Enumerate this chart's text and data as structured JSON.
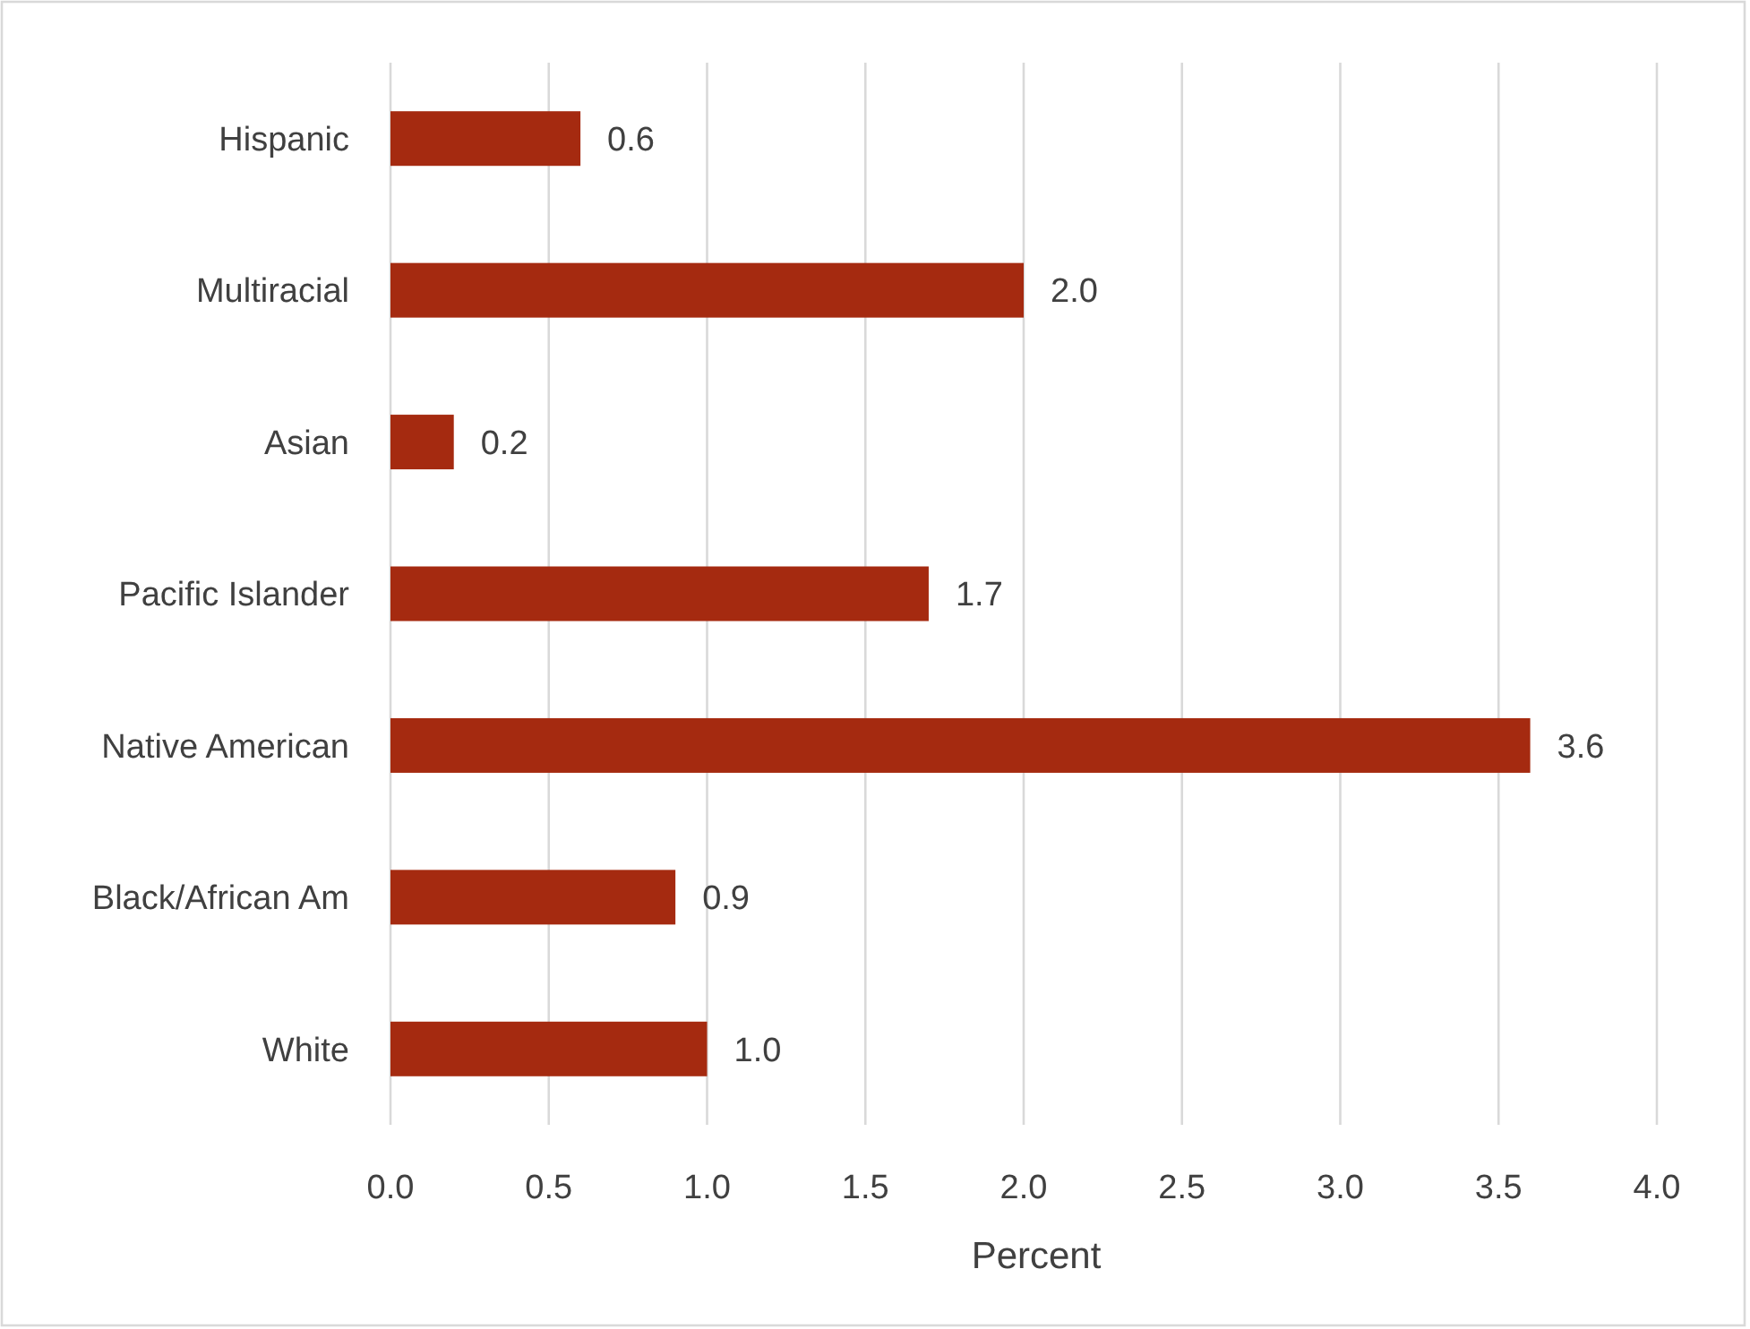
{
  "chart_data": {
    "type": "bar",
    "orientation": "horizontal",
    "xlabel": "Percent",
    "categories": [
      "Hispanic",
      "Multiracial",
      "Asian",
      "Pacific Islander",
      "Native American",
      "Black/African Am",
      "White"
    ],
    "values": [
      0.6,
      2.0,
      0.2,
      1.7,
      3.6,
      0.9,
      1.0
    ],
    "color": "#a52a10",
    "value_labels": [
      "0.6",
      "2.0",
      "0.2",
      "1.7",
      "3.6",
      "0.9",
      "1.0"
    ],
    "xlim": [
      0,
      4
    ],
    "xticks": [
      {
        "value": 0,
        "label": "0.0"
      },
      {
        "value": 0.5,
        "label": "0.5"
      },
      {
        "value": 1,
        "label": "1.0"
      },
      {
        "value": 1.5,
        "label": "1.5"
      },
      {
        "value": 2,
        "label": "2.0"
      },
      {
        "value": 2.5,
        "label": "2.5"
      },
      {
        "value": 3,
        "label": "3.0"
      },
      {
        "value": 3.5,
        "label": "3.5"
      },
      {
        "value": 4,
        "label": "4.0"
      }
    ],
    "grid": "x"
  }
}
